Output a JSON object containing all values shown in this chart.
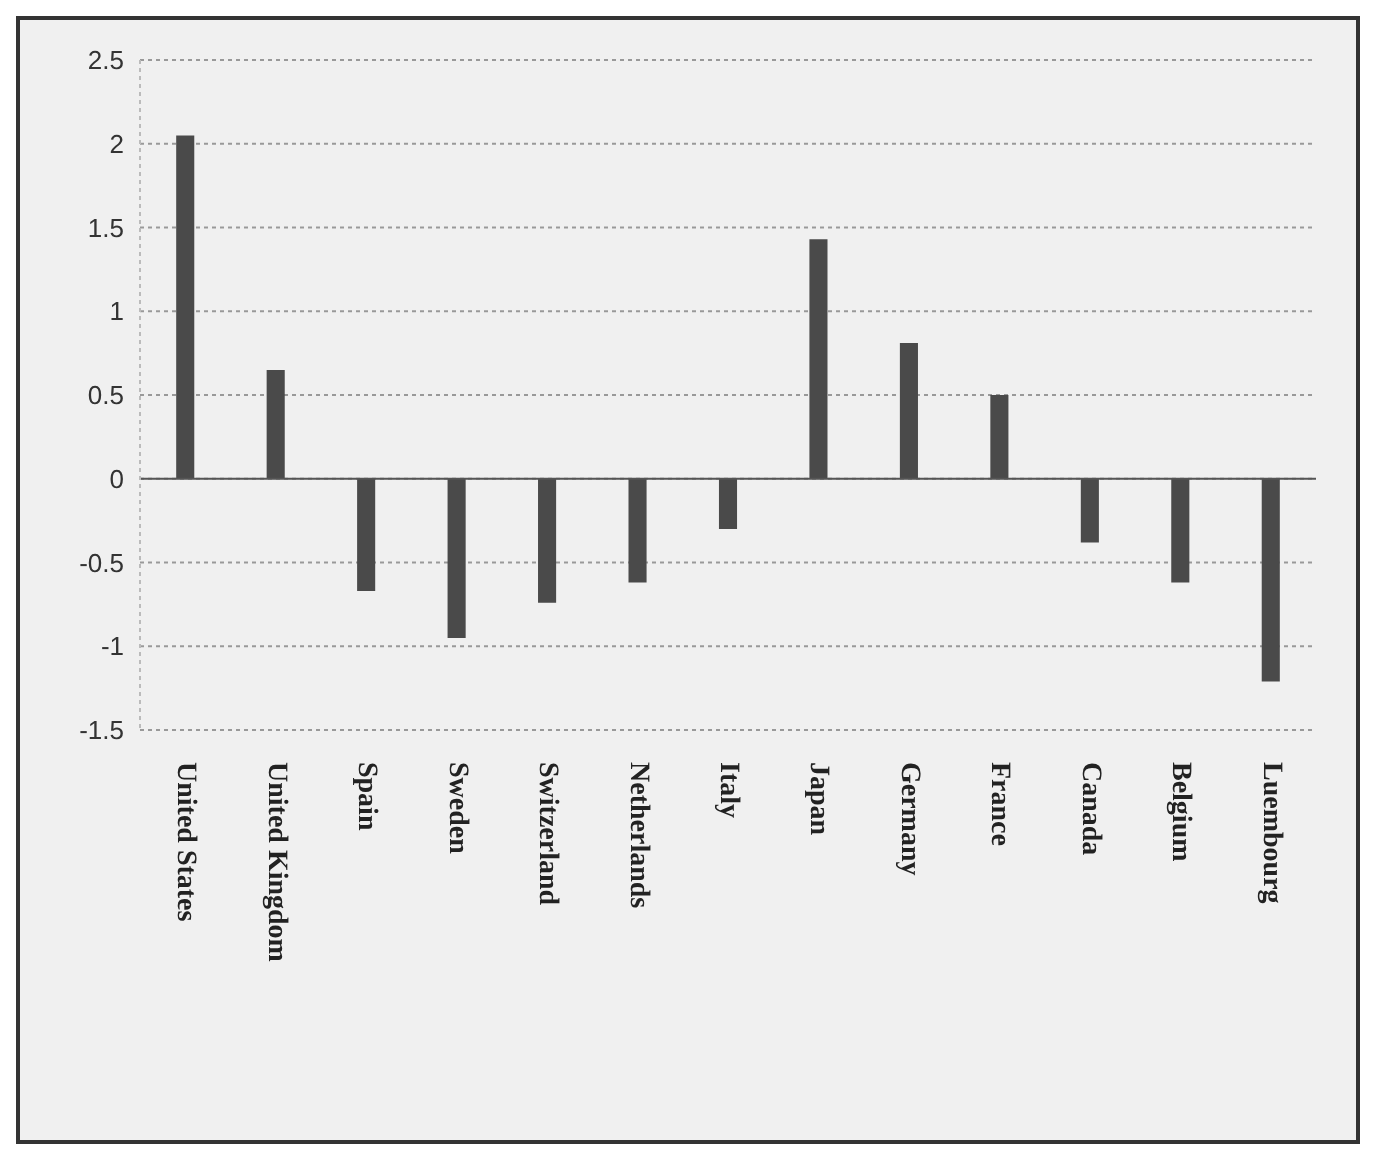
{
  "chart_data": {
    "type": "bar",
    "categories": [
      "United States",
      "United Kingdom",
      "Spain",
      "Sweden",
      "Switzerland",
      "Netherlands",
      "Italy",
      "Japan",
      "Germany",
      "France",
      "Canada",
      "Belgium",
      "Luembourg"
    ],
    "values": [
      2.05,
      0.65,
      -0.67,
      -0.95,
      -0.74,
      -0.62,
      -0.3,
      1.43,
      0.81,
      0.5,
      -0.38,
      -0.62,
      -1.21
    ],
    "color": "#4a4a4a",
    "ylim": [
      -1.5,
      2.5
    ],
    "yticks": [
      -1.5,
      -1,
      -0.5,
      0,
      0.5,
      1,
      1.5,
      2,
      2.5
    ],
    "grid": "y"
  }
}
